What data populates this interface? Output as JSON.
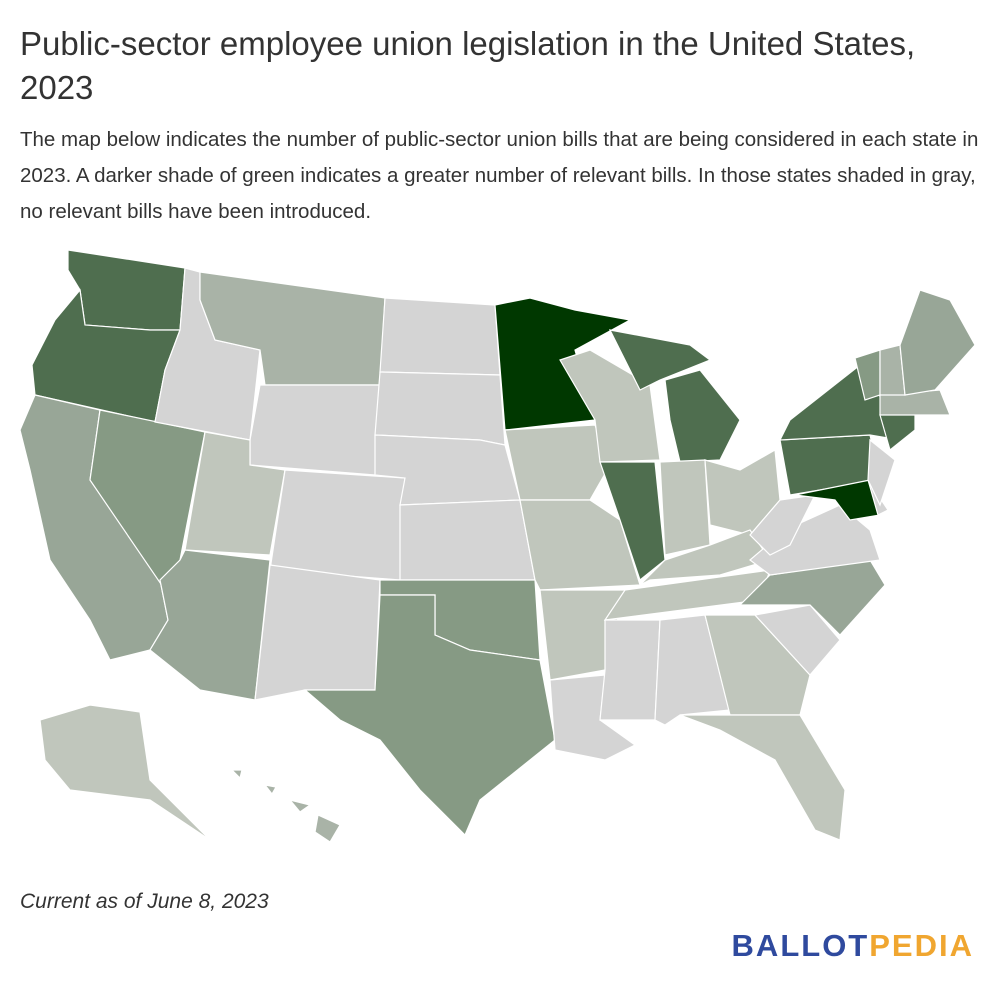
{
  "header": {
    "title": "Public-sector employee union legislation in the United States, 2023",
    "description": "The map below indicates the number of public-sector union bills that are being considered in each state in 2023. A darker shade of green indicates a greater number of relevant bills. In those states shaded in gray, no relevant bills have been introduced."
  },
  "footer": {
    "note": "Current as of June 8, 2023",
    "logo_left": "BALLOT",
    "logo_right": "PEDIA"
  }
}
